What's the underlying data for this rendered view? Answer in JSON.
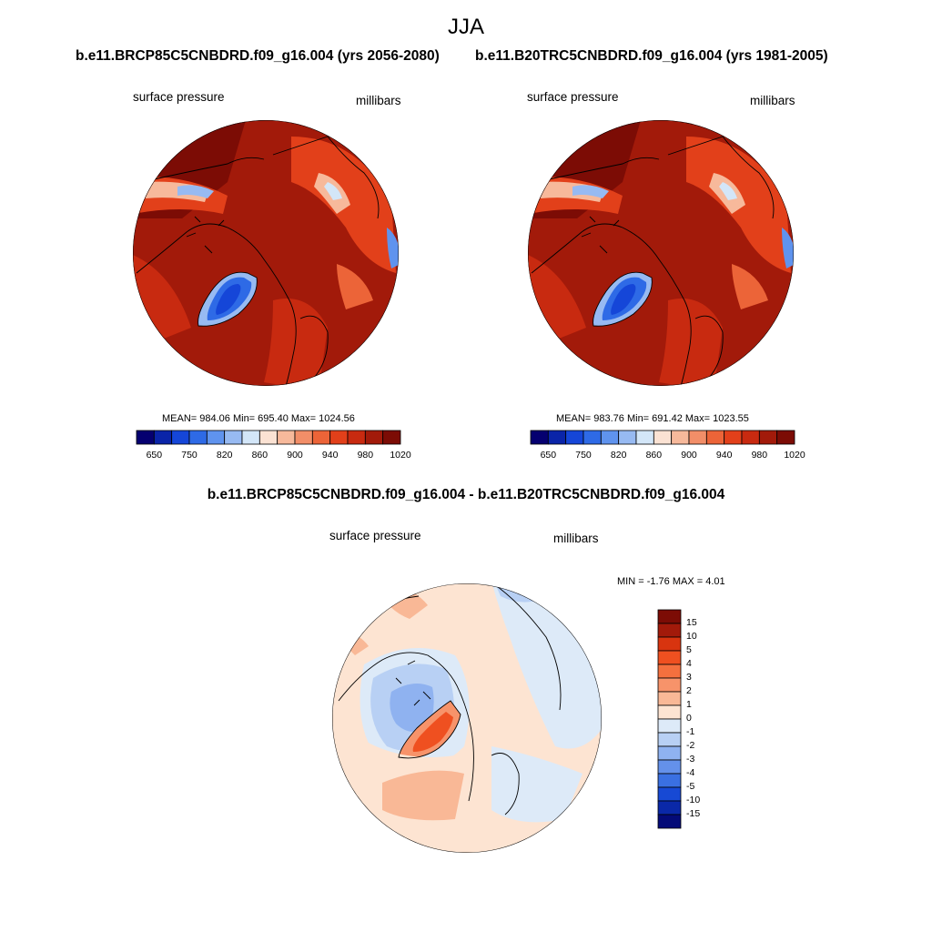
{
  "season": "JJA",
  "panels": [
    {
      "title": "b.e11.BRCP85C5CNBDRD.f09_g16.004 (yrs 2056-2080)",
      "variable": "surface pressure",
      "units": "millibars",
      "stats": "MEAN= 984.06  Min= 695.40  Max= 1024.56"
    },
    {
      "title": "b.e11.B20TRC5CNBDRD.f09_g16.004 (yrs 1981-2005)",
      "variable": "surface pressure",
      "units": "millibars",
      "stats": "MEAN= 983.76  Min= 691.42  Max= 1023.55"
    }
  ],
  "abs_colorbar": {
    "labels": [
      "650",
      "750",
      "820",
      "860",
      "900",
      "940",
      "980",
      "1020"
    ],
    "colors": [
      "#050070",
      "#0a24a8",
      "#1546d8",
      "#2e6ae6",
      "#5f93ee",
      "#97baf2",
      "#d3e6f8",
      "#fbe2d3",
      "#f7b99b",
      "#f28e68",
      "#ec6438",
      "#e2401a",
      "#c82a10",
      "#a21a0a",
      "#7c0c05"
    ]
  },
  "difference": {
    "title": "b.e11.BRCP85C5CNBDRD.f09_g16.004 - b.e11.B20TRC5CNBDRD.f09_g16.004",
    "variable": "surface pressure",
    "units": "millibars",
    "stats": "MIN =  -1.76 MAX =   4.01",
    "colorbar_labels": [
      "15",
      "10",
      "5",
      "4",
      "3",
      "2",
      "1",
      "0",
      "-1",
      "-2",
      "-3",
      "-4",
      "-5",
      "-10",
      "-15"
    ],
    "colorbar_colors": [
      "#7c0c05",
      "#a21a0a",
      "#d8340f",
      "#ef5020",
      "#f4703e",
      "#f7936a",
      "#f9b896",
      "#fde4d2",
      "#ddeaf8",
      "#b8d0f4",
      "#8fb2f0",
      "#6491ea",
      "#3a70e2",
      "#1749d4",
      "#0a28a8",
      "#040a78"
    ]
  }
}
